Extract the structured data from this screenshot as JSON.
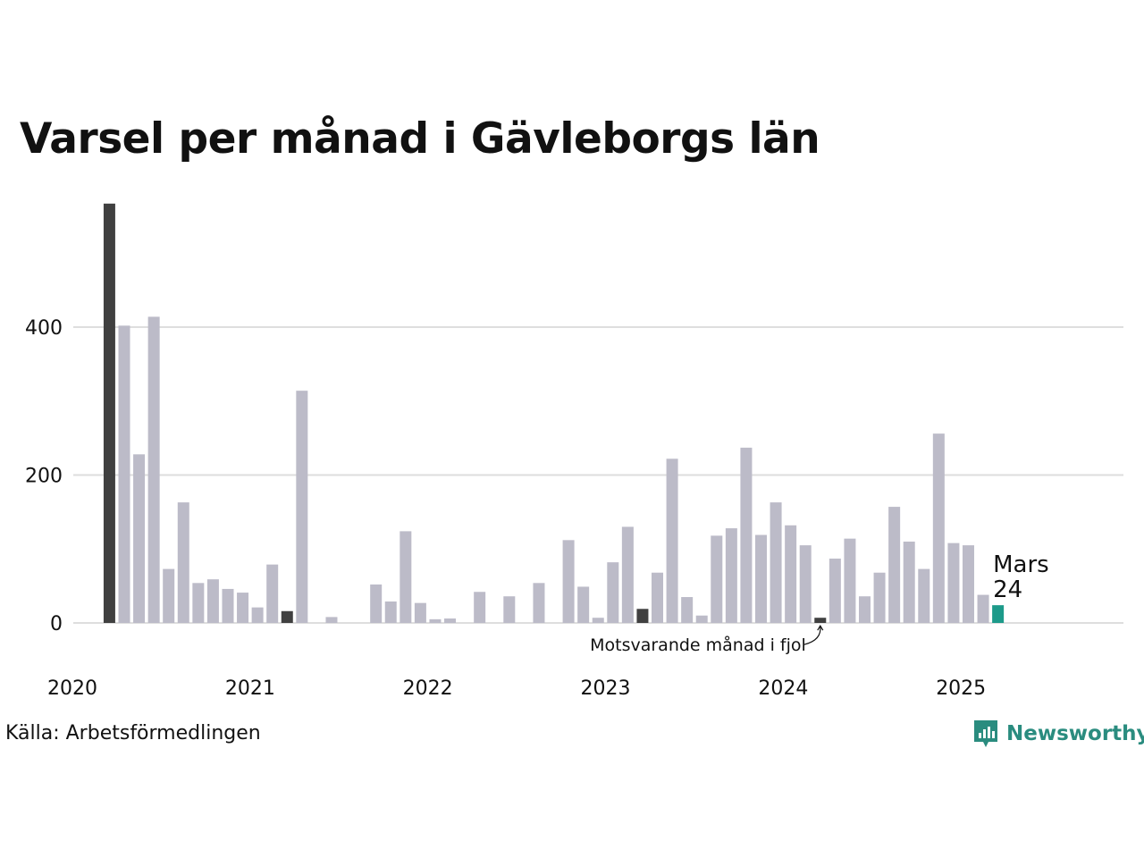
{
  "title": "Varsel per månad i Gävleborgs län",
  "source": "Källa: Arbetsförmedlingen",
  "brand": {
    "name": "Newsworthy",
    "color": "#2a8c7f",
    "icon": "newsworthy-logo-icon"
  },
  "colors": {
    "bar": "#bcbbc8",
    "same_month": "#404040",
    "current": "#1d9a8a",
    "grid": "#dedede"
  },
  "chart_data": {
    "type": "bar",
    "title": "Varsel per månad i Gävleborgs län",
    "xlabel": "",
    "ylabel": "",
    "ylim": [
      0,
      575
    ],
    "yticks": [
      0,
      200,
      400
    ],
    "xticks": [
      "2020",
      "2021",
      "2022",
      "2023",
      "2024",
      "2025"
    ],
    "x_start": "2020-01",
    "grid": "horizontal",
    "categories": [
      "2020-03",
      "2020-04",
      "2020-05",
      "2020-06",
      "2020-07",
      "2020-08",
      "2020-09",
      "2020-10",
      "2020-11",
      "2020-12",
      "2021-01",
      "2021-02",
      "2021-03",
      "2021-04",
      "2021-05",
      "2021-06",
      "2021-07",
      "2021-08",
      "2021-09",
      "2021-10",
      "2021-11",
      "2021-12",
      "2022-01",
      "2022-02",
      "2022-03",
      "2022-04",
      "2022-05",
      "2022-06",
      "2022-07",
      "2022-08",
      "2022-09",
      "2022-10",
      "2022-11",
      "2022-12",
      "2023-01",
      "2023-02",
      "2023-03",
      "2023-04",
      "2023-05",
      "2023-06",
      "2023-07",
      "2023-08",
      "2023-09",
      "2023-10",
      "2023-11",
      "2023-12",
      "2024-01",
      "2024-02",
      "2024-03",
      "2024-04",
      "2024-05",
      "2024-06",
      "2024-07",
      "2024-08",
      "2024-09",
      "2024-10",
      "2024-11",
      "2024-12",
      "2025-01",
      "2025-02",
      "2025-03"
    ],
    "values": [
      567,
      402,
      228,
      414,
      73,
      163,
      54,
      59,
      46,
      41,
      21,
      79,
      16,
      314,
      0,
      8,
      0,
      0,
      52,
      29,
      124,
      27,
      5,
      6,
      0,
      42,
      0,
      36,
      0,
      54,
      0,
      112,
      49,
      7,
      82,
      130,
      19,
      68,
      222,
      35,
      10,
      118,
      128,
      237,
      119,
      163,
      132,
      105,
      7,
      87,
      114,
      36,
      68,
      157,
      110,
      73,
      256,
      108,
      105,
      38,
      24
    ],
    "highlight_same_month": [
      "2020-03",
      "2021-03",
      "2023-03",
      "2024-03"
    ],
    "current": {
      "category": "2025-03",
      "label": "Mars",
      "value": "24"
    },
    "annotation": {
      "category": "2024-03",
      "text": "Motsvarande månad i fjol"
    }
  }
}
